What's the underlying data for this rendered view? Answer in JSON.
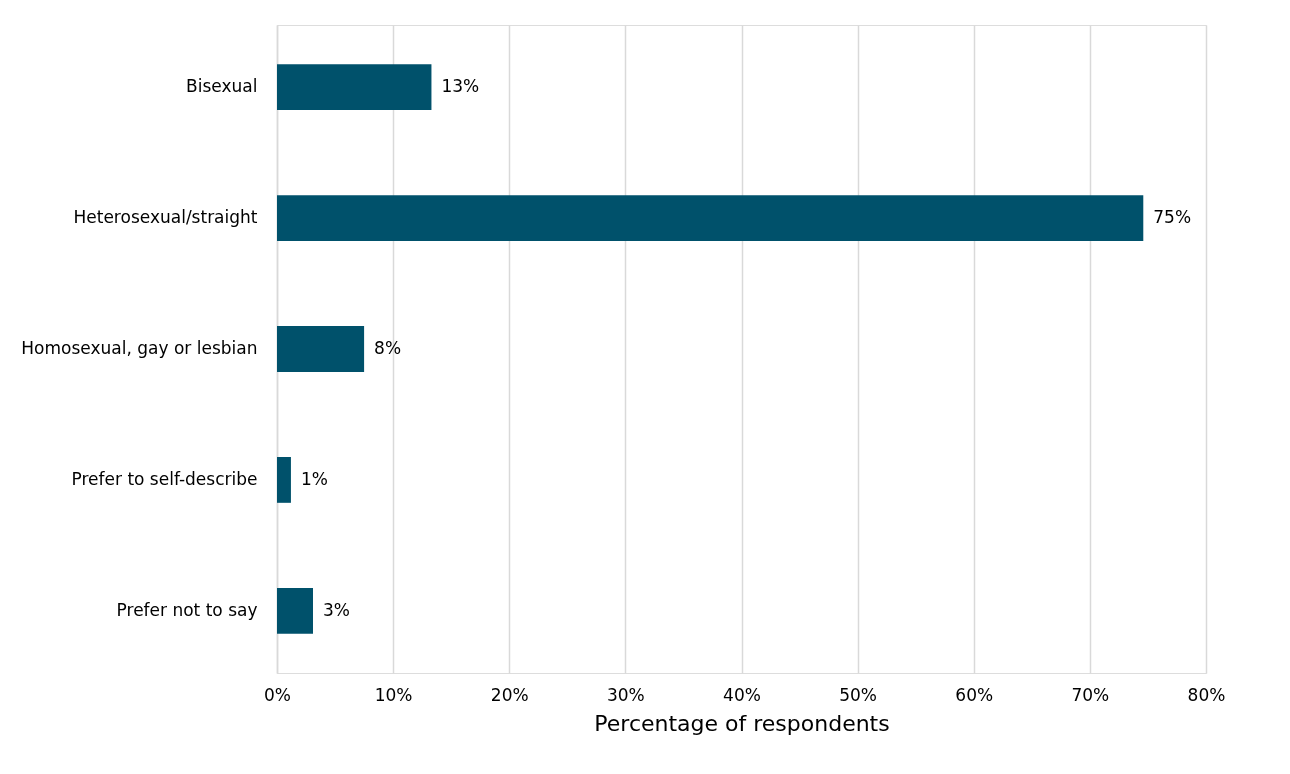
{
  "chart_data": {
    "type": "bar",
    "orientation": "horizontal",
    "categories": [
      "Bisexual",
      "Heterosexual/straight",
      "Homosexual, gay or lesbian",
      "Prefer to self-describe",
      "Prefer not to say"
    ],
    "values": [
      13.3,
      74.6,
      7.5,
      1.2,
      3.1
    ],
    "value_labels": [
      "13%",
      "75%",
      "8%",
      "1%",
      "3%"
    ],
    "color": "#00516b",
    "xlabel": "Percentage of respondents",
    "xlim": [
      0,
      80
    ],
    "xticks": [
      {
        "value": 0,
        "label": "0%"
      },
      {
        "value": 10,
        "label": "10%"
      },
      {
        "value": 20,
        "label": "20%"
      },
      {
        "value": 30,
        "label": "30%"
      },
      {
        "value": 40,
        "label": "40%"
      },
      {
        "value": 50,
        "label": "50%"
      },
      {
        "value": 60,
        "label": "60%"
      },
      {
        "value": 70,
        "label": "70%"
      },
      {
        "value": 80,
        "label": "80%"
      }
    ],
    "grid": "x"
  }
}
